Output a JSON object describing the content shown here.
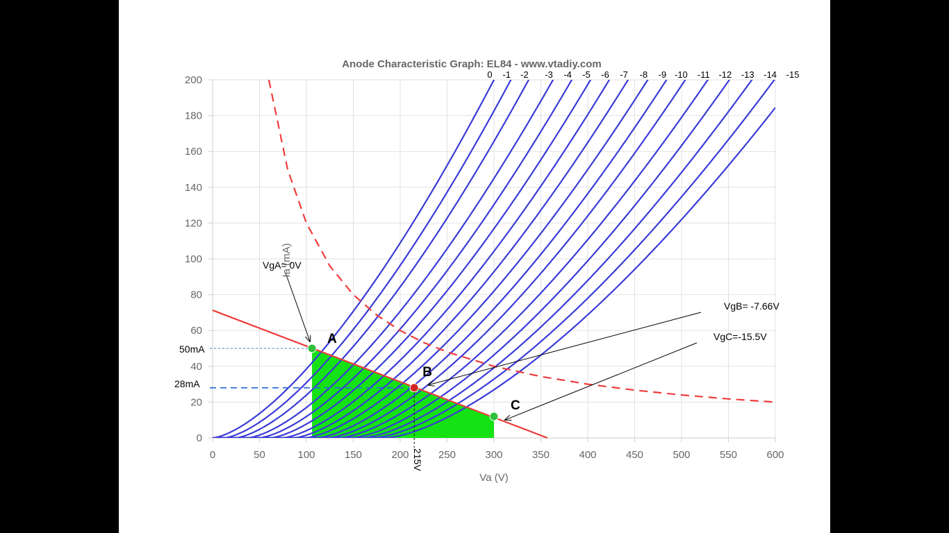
{
  "chart_data": {
    "type": "line",
    "title": "Anode Characteristic Graph: EL84 - www.vtadiy.com",
    "xlabel": "Va (V)",
    "ylabel": "Ia (mA)",
    "xlim": [
      0,
      600
    ],
    "ylim": [
      0,
      200
    ],
    "x_ticks": [
      "0",
      "50",
      "100",
      "150",
      "200",
      "250",
      "300",
      "350",
      "400",
      "450",
      "500",
      "550",
      "600"
    ],
    "y_ticks": [
      "0",
      "20",
      "40",
      "60",
      "80",
      "100",
      "120",
      "140",
      "160",
      "180",
      "200"
    ],
    "grid": true,
    "grid_voltage_labels": [
      "0",
      "-1",
      "-2",
      "-3",
      "-4",
      "-5",
      "-6",
      "-7",
      "-8",
      "-9",
      "-10",
      "-11",
      "-12",
      "-13",
      "-14",
      "-15"
    ],
    "grid_curves": [
      {
        "vg": 0,
        "x_start": 0,
        "x_at_top": 300
      },
      {
        "vg": -1,
        "x_start": 12,
        "x_at_top": 318
      },
      {
        "vg": -2,
        "x_start": 24,
        "x_at_top": 337
      },
      {
        "vg": -3,
        "x_start": 37,
        "x_at_top": 363
      },
      {
        "vg": -4,
        "x_start": 49,
        "x_at_top": 383
      },
      {
        "vg": -5,
        "x_start": 61,
        "x_at_top": 403
      },
      {
        "vg": -6,
        "x_start": 74,
        "x_at_top": 423
      },
      {
        "vg": -7,
        "x_start": 86,
        "x_at_top": 443
      },
      {
        "vg": -8,
        "x_start": 98,
        "x_at_top": 464
      },
      {
        "vg": -9,
        "x_start": 111,
        "x_at_top": 484
      },
      {
        "vg": -10,
        "x_start": 123,
        "x_at_top": 504
      },
      {
        "vg": -11,
        "x_start": 135,
        "x_at_top": 528
      },
      {
        "vg": -12,
        "x_start": 148,
        "x_at_top": 551
      },
      {
        "vg": -13,
        "x_start": 160,
        "x_at_top": 575
      },
      {
        "vg": -14,
        "x_start": 172,
        "x_at_top": 599
      },
      {
        "vg": -15,
        "x_start": 185,
        "x_at_top": 623
      }
    ],
    "max_dissipation_curve": {
      "watts": 12,
      "x": [
        60,
        80,
        100,
        125,
        150,
        175,
        200,
        225,
        250,
        300,
        350,
        400,
        450,
        500,
        550,
        600
      ],
      "y": [
        200,
        150,
        120,
        96,
        80,
        68.6,
        60,
        53.3,
        48,
        40,
        34.3,
        30,
        26.7,
        24,
        21.8,
        20
      ]
    },
    "load_line": {
      "x": [
        0,
        357
      ],
      "y": [
        71.3,
        0
      ]
    },
    "shaded_region": {
      "x_from": 106,
      "x_to": 300
    },
    "points": [
      {
        "label": "A",
        "x": 106,
        "y": 50
      },
      {
        "label": "B",
        "x": 215,
        "y": 28
      },
      {
        "label": "C",
        "x": 300,
        "y": 12
      }
    ],
    "annotations": {
      "vga": "VgA= 0V",
      "vgb": "VgB= -7.66V",
      "vgc": "VgC=-15.5V",
      "ia_a": "50mA",
      "ia_b": "28mA",
      "va_b": "215V"
    }
  }
}
